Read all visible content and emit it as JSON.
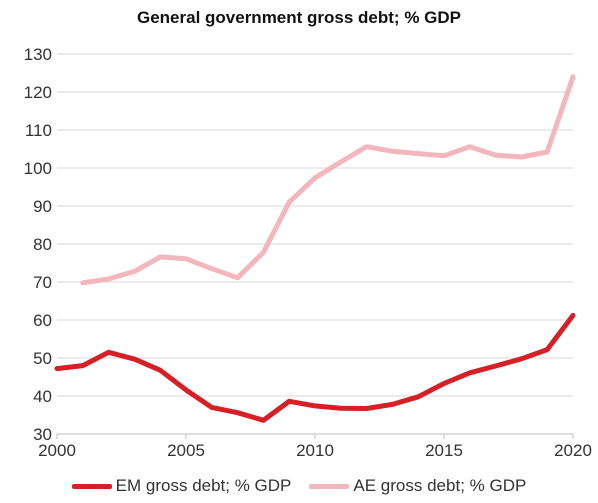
{
  "chart_data": {
    "type": "line",
    "title": "General government gross debt; % GDP",
    "xlabel": "",
    "ylabel": "",
    "xlim": [
      2000,
      2020
    ],
    "ylim": [
      30,
      130
    ],
    "xticks": [
      "2000",
      "2005",
      "2010",
      "2015",
      "2020"
    ],
    "yticks": [
      "30",
      "40",
      "50",
      "60",
      "70",
      "80",
      "90",
      "100",
      "110",
      "120",
      "130"
    ],
    "grid": "horizontal",
    "legend": "bottom",
    "series": [
      {
        "name": "EM gross debt; % GDP",
        "color": "#d71f26",
        "x": [
          2000,
          2001,
          2002,
          2003,
          2004,
          2005,
          2006,
          2007,
          2008,
          2009,
          2010,
          2011,
          2012,
          2013,
          2014,
          2015,
          2016,
          2017,
          2018,
          2019,
          2020
        ],
        "values": [
          47.2,
          48.0,
          51.5,
          49.7,
          46.8,
          41.6,
          37.0,
          35.6,
          33.6,
          38.6,
          37.4,
          36.8,
          36.7,
          37.8,
          39.8,
          43.3,
          46.1,
          47.9,
          49.8,
          52.2,
          61.2
        ]
      },
      {
        "name": "AE gross debt; % GDP",
        "color": "#f4b6bd",
        "x": [
          2001,
          2002,
          2003,
          2004,
          2005,
          2006,
          2007,
          2008,
          2009,
          2010,
          2011,
          2012,
          2013,
          2014,
          2015,
          2016,
          2017,
          2018,
          2019,
          2020
        ],
        "values": [
          69.8,
          70.8,
          72.8,
          76.6,
          76.1,
          73.5,
          71.1,
          77.8,
          91.0,
          97.4,
          101.6,
          105.6,
          104.4,
          103.8,
          103.2,
          105.6,
          103.4,
          102.9,
          104.2,
          124.0
        ]
      }
    ]
  }
}
